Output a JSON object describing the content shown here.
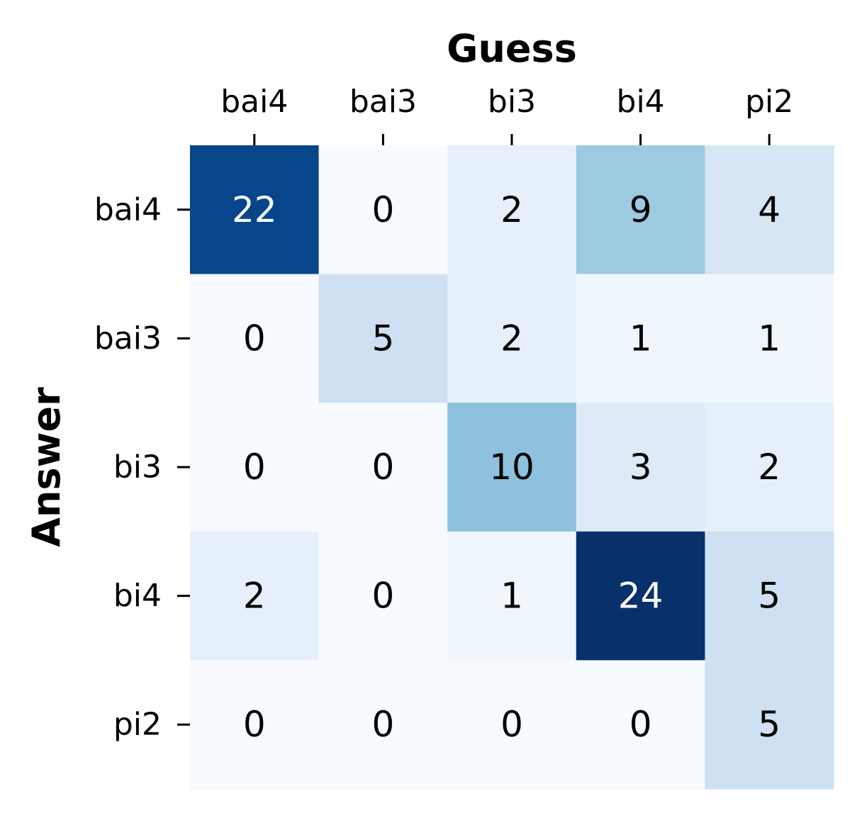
{
  "chart_data": {
    "type": "heatmap",
    "title": "",
    "xlabel": "Guess",
    "ylabel": "Answer",
    "x_categories": [
      "bai4",
      "bai3",
      "bi3",
      "bi4",
      "pi2"
    ],
    "y_categories": [
      "bai4",
      "bai3",
      "bi3",
      "bi4",
      "pi2"
    ],
    "values": [
      [
        22,
        0,
        2,
        9,
        4
      ],
      [
        0,
        5,
        2,
        1,
        1
      ],
      [
        0,
        0,
        10,
        3,
        2
      ],
      [
        2,
        0,
        1,
        24,
        5
      ],
      [
        0,
        0,
        0,
        0,
        5
      ]
    ],
    "colormap": "Blues",
    "x_axis_position": "top",
    "colorbar": false,
    "grid": false
  }
}
